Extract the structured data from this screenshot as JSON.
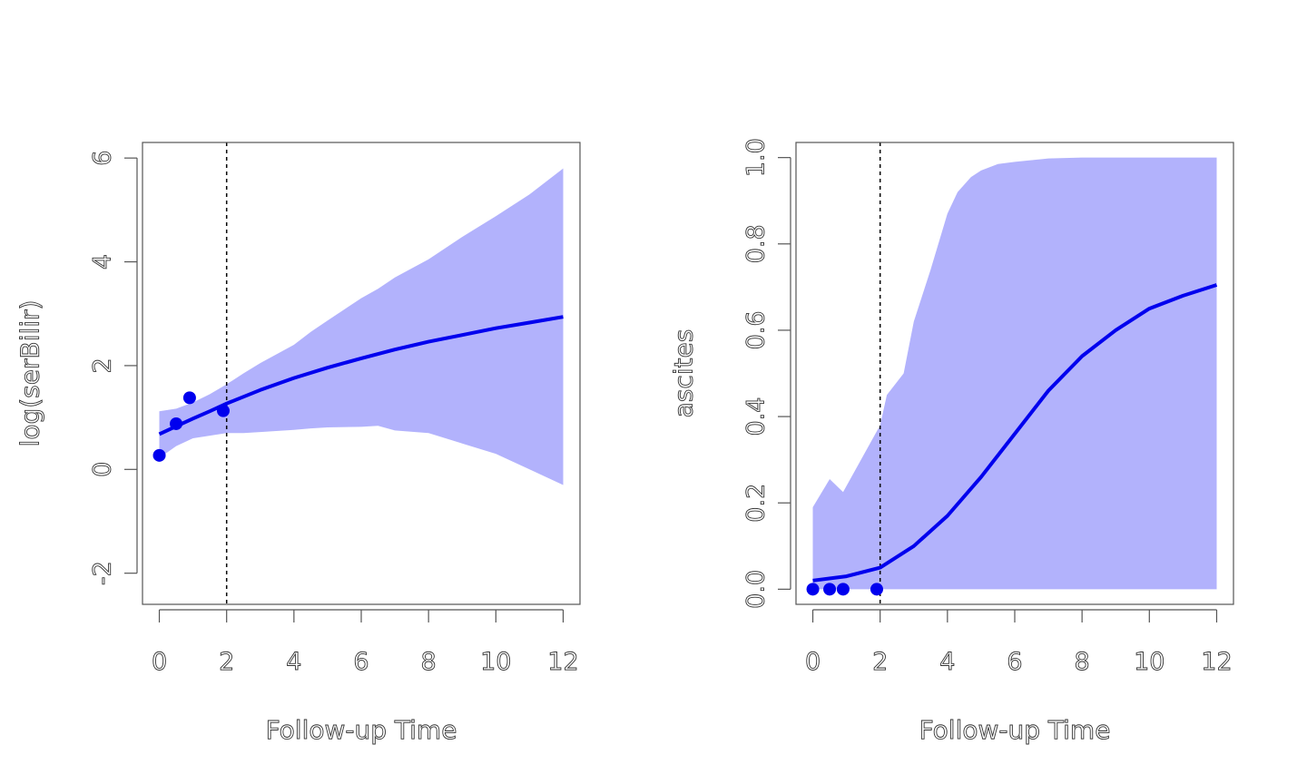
{
  "chart_data": [
    {
      "type": "line",
      "title": "",
      "xlabel": "Follow-up Time",
      "ylabel": "log(serBilir)",
      "xlim": [
        -0.5,
        12.5
      ],
      "ylim": [
        -2.6,
        6.3
      ],
      "x_ticks": [
        0,
        2,
        4,
        6,
        8,
        10,
        12
      ],
      "x_tick_labels": [
        "0",
        "2",
        "4",
        "6",
        "8",
        "10",
        "12"
      ],
      "y_ticks": [
        -2,
        0,
        2,
        4,
        6
      ],
      "y_tick_labels": [
        "-2",
        "0",
        "2",
        "4",
        "6"
      ],
      "vline": 2,
      "fitted": {
        "x": [
          0,
          0.5,
          1,
          1.5,
          2,
          3,
          4,
          5,
          6,
          7,
          8,
          9,
          10,
          11,
          12
        ],
        "y": [
          0.68,
          0.83,
          0.98,
          1.12,
          1.27,
          1.53,
          1.76,
          1.96,
          2.14,
          2.31,
          2.46,
          2.59,
          2.72,
          2.83,
          2.94
        ]
      },
      "band": {
        "x": [
          0,
          0.5,
          1,
          1.5,
          2,
          2.5,
          3,
          4,
          4.5,
          5,
          6,
          6.5,
          7,
          8,
          9,
          10,
          11,
          12
        ],
        "upper": [
          1.12,
          1.17,
          1.29,
          1.45,
          1.64,
          1.85,
          2.05,
          2.4,
          2.65,
          2.87,
          3.3,
          3.48,
          3.7,
          4.05,
          4.48,
          4.88,
          5.3,
          5.8
        ],
        "lower": [
          0.22,
          0.45,
          0.6,
          0.65,
          0.7,
          0.7,
          0.72,
          0.76,
          0.79,
          0.81,
          0.82,
          0.84,
          0.75,
          0.7,
          0.5,
          0.3,
          0.0,
          -0.3
        ]
      },
      "observed": {
        "x": [
          0,
          0.5,
          0.9,
          1.9
        ],
        "y": [
          0.27,
          0.88,
          1.38,
          1.13
        ]
      },
      "grid": false
    },
    {
      "type": "line",
      "title": "",
      "xlabel": "Follow-up Time",
      "ylabel": "ascites",
      "xlim": [
        -0.5,
        12.5
      ],
      "ylim": [
        -0.035,
        1.035
      ],
      "x_ticks": [
        0,
        2,
        4,
        6,
        8,
        10,
        12
      ],
      "x_tick_labels": [
        "0",
        "2",
        "4",
        "6",
        "8",
        "10",
        "12"
      ],
      "y_ticks": [
        0,
        0.2,
        0.4,
        0.6,
        0.8,
        1.0
      ],
      "y_tick_labels": [
        "0.0",
        "0.2",
        "0.4",
        "0.6",
        "0.8",
        "1.0"
      ],
      "vline": 2,
      "fitted": {
        "x": [
          0,
          1,
          2,
          3,
          4,
          5,
          6,
          7,
          8,
          9,
          10,
          11,
          12
        ],
        "y": [
          0.02,
          0.03,
          0.05,
          0.1,
          0.17,
          0.26,
          0.36,
          0.46,
          0.54,
          0.6,
          0.65,
          0.68,
          0.705
        ]
      },
      "band": {
        "x": [
          0,
          0.5,
          0.9,
          2,
          2.2,
          2.7,
          3,
          3.5,
          4,
          4.3,
          4.7,
          5,
          5.5,
          6,
          7,
          8,
          10,
          12
        ],
        "upper": [
          0.19,
          0.255,
          0.225,
          0.38,
          0.45,
          0.5,
          0.62,
          0.74,
          0.87,
          0.92,
          0.955,
          0.97,
          0.985,
          0.99,
          0.998,
          1.0,
          1.0,
          1.0
        ],
        "lower": [
          0,
          0,
          0,
          0,
          0,
          0,
          0,
          0,
          0,
          0,
          0,
          0,
          0,
          0,
          0,
          0,
          0,
          0
        ]
      },
      "observed": {
        "x": [
          0,
          0.5,
          0.9,
          1.9
        ],
        "y": [
          0,
          0,
          0,
          0
        ]
      },
      "grid": false
    }
  ]
}
